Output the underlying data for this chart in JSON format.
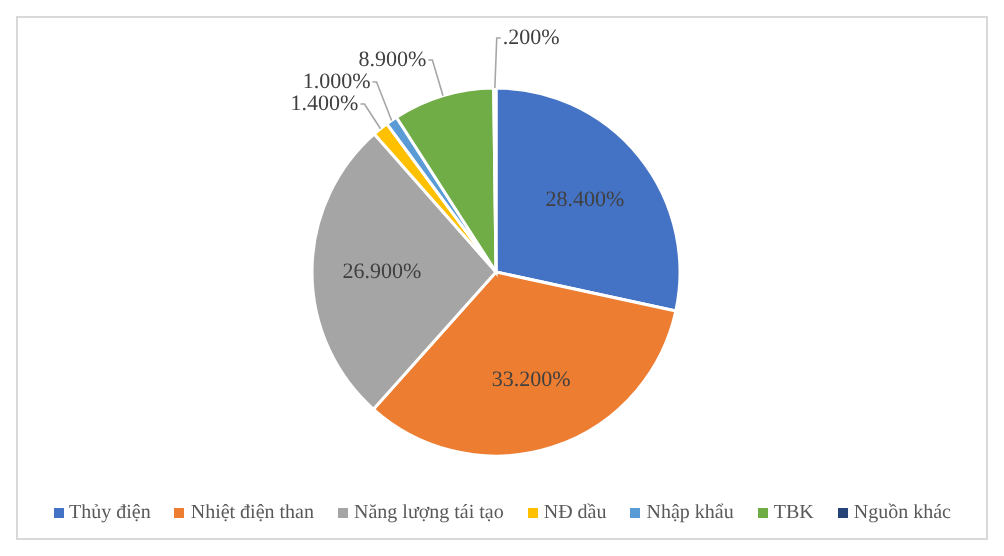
{
  "chart_data": {
    "type": "pie",
    "categories": [
      "Thủy điện",
      "Nhiệt điện than",
      "Năng lượng tái tạo",
      "NĐ dầu",
      "Nhập khẩu",
      "TBK",
      "Nguồn khác"
    ],
    "values": [
      28.4,
      33.2,
      26.9,
      1.4,
      1.0,
      8.9,
      0.2
    ],
    "value_labels": [
      "28.400%",
      "33.200%",
      "26.900%",
      "1.400%",
      "1.000%",
      "8.900%",
      ".200%"
    ],
    "colors": [
      "#4472c4",
      "#ed7d31",
      "#a5a5a5",
      "#ffc000",
      "#5b9bd5",
      "#70ad47",
      "#264478"
    ],
    "legend": "bottom"
  }
}
